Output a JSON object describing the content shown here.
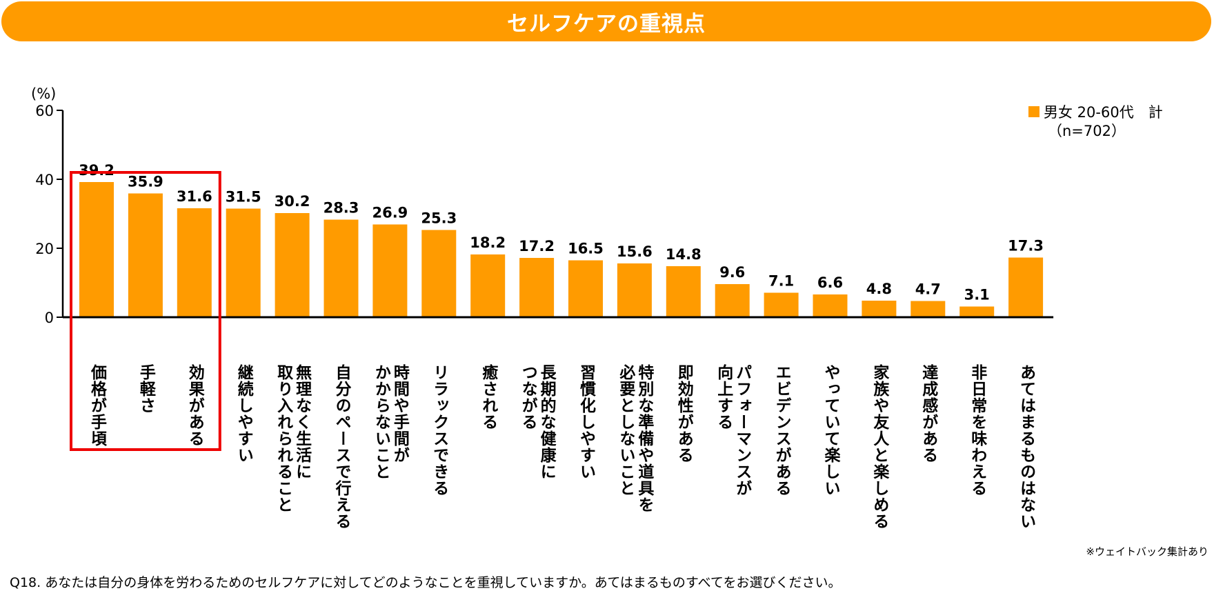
{
  "header": {
    "title": "セルフケアの重視点"
  },
  "legend": {
    "label": "男女 20-60代　計",
    "n": "（n=702）",
    "color": "#FF9B00"
  },
  "note": "※ウェイトバック集計あり",
  "question": "Q18. あなたは自分の身体を労わるためのセルフケアに対してどのようなことを重視していますか。あてはまるものすべてをお選びください。",
  "highlight": {
    "color": "#EE0000",
    "categories_highlighted": [
      0,
      1,
      2
    ]
  },
  "chart_data": {
    "type": "bar",
    "title": "セルフケアの重視点",
    "xlabel": "",
    "ylabel": "(%)",
    "ylim": [
      0,
      60
    ],
    "yticks": [
      0,
      20,
      40,
      60
    ],
    "grid": false,
    "legend_position": "top-right",
    "categories": [
      [
        "価格が手頃"
      ],
      [
        "手軽さ"
      ],
      [
        "効果がある"
      ],
      [
        "継続しやすい"
      ],
      [
        "無理なく生活に",
        "取り入れられること"
      ],
      [
        "自分のペースで行える"
      ],
      [
        "時間や手間が",
        "かからないこと"
      ],
      [
        "リラックスできる"
      ],
      [
        "癒される"
      ],
      [
        "長期的な健康に",
        "つながる"
      ],
      [
        "習慣化しやすい"
      ],
      [
        "特別な準備や道具を",
        "必要としないこと"
      ],
      [
        "即効性がある"
      ],
      [
        "パフォーマンスが",
        "向上する"
      ],
      [
        "エビデンスがある"
      ],
      [
        "やっていて楽しい"
      ],
      [
        "家族や友人と楽しめる"
      ],
      [
        "達成感がある"
      ],
      [
        "非日常を味わえる"
      ],
      [
        "あてはまるものはない"
      ]
    ],
    "series": [
      {
        "name": "男女 20-60代　計（n=702）",
        "color": "#FF9B00",
        "values": [
          39.2,
          35.9,
          31.6,
          31.5,
          30.2,
          28.3,
          26.9,
          25.3,
          18.2,
          17.2,
          16.5,
          15.6,
          14.8,
          9.6,
          7.1,
          6.6,
          4.8,
          4.7,
          3.1,
          17.3
        ],
        "labels": [
          "39.2",
          "35.9",
          "31.6",
          "31.5",
          "30.2",
          "28.3",
          "26.9",
          "25.3",
          "18.2",
          "17.2",
          "16.5",
          "15.6",
          "14.8",
          "9.6",
          "7.1",
          "6.6",
          "4.8",
          "4.7",
          "3.1",
          "17.3"
        ]
      }
    ]
  }
}
